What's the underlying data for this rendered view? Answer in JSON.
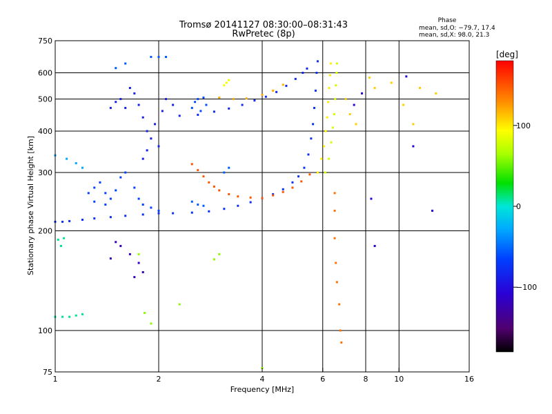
{
  "chart_data": {
    "type": "scatter",
    "title": "Tromsø 20141127 08:30:00–08:31:43",
    "subtitle": "RwPretec (8p)",
    "xlabel": "Frequency [MHz]",
    "ylabel": "Stationary phase Virtual Height [km]",
    "x_scale": "log",
    "y_scale": "log",
    "xlim": [
      1,
      16
    ],
    "ylim": [
      75,
      750
    ],
    "x_ticks": [
      1,
      2,
      4,
      6,
      8,
      10,
      16
    ],
    "x_tick_labels": [
      "1",
      "2",
      "4",
      "6",
      "8",
      "10",
      "16"
    ],
    "x_grid": [
      2,
      4,
      6,
      8,
      10
    ],
    "y_ticks": [
      75,
      100,
      200,
      300,
      400,
      500,
      600,
      750
    ],
    "y_tick_labels": [
      "75",
      "100",
      "200",
      "300",
      "400",
      "500",
      "600",
      "750"
    ],
    "y_grid": [
      100,
      200,
      300,
      400,
      500,
      600
    ],
    "grid": true,
    "stats": {
      "heading": "Phase",
      "line_o": "mean, sd,O: −79.7, 17.4",
      "line_x": "mean, sd,X:  98.0, 21.3"
    },
    "colorbar": {
      "label": "[deg]",
      "range": [
        -180,
        180
      ],
      "ticks": [
        100,
        0,
        -100
      ],
      "tick_labels": [
        "100",
        "0",
        "−100"
      ]
    },
    "series": [
      {
        "phase": -80,
        "points": [
          [
            1.0,
            213
          ],
          [
            1.05,
            213
          ],
          [
            1.1,
            214
          ],
          [
            1.2,
            216
          ],
          [
            1.3,
            218
          ],
          [
            1.45,
            220
          ],
          [
            1.6,
            222
          ],
          [
            1.8,
            224
          ],
          [
            2.0,
            226
          ],
          [
            2.2,
            226
          ],
          [
            2.5,
            227
          ],
          [
            2.8,
            229
          ],
          [
            3.1,
            233
          ],
          [
            3.4,
            238
          ],
          [
            3.7,
            244
          ],
          [
            4.0,
            251
          ],
          [
            4.3,
            258
          ],
          [
            4.6,
            267
          ],
          [
            4.9,
            280
          ],
          [
            5.1,
            292
          ],
          [
            5.3,
            310
          ],
          [
            5.45,
            340
          ],
          [
            5.55,
            380
          ],
          [
            5.62,
            420
          ],
          [
            5.67,
            470
          ],
          [
            5.72,
            530
          ],
          [
            5.76,
            600
          ],
          [
            5.8,
            650
          ]
        ]
      },
      {
        "phase": -85,
        "points": [
          [
            2.3,
            445
          ],
          [
            2.6,
            448
          ],
          [
            2.9,
            458
          ],
          [
            3.2,
            468
          ],
          [
            3.5,
            480
          ],
          [
            3.8,
            495
          ],
          [
            4.1,
            508
          ],
          [
            4.4,
            525
          ],
          [
            4.7,
            548
          ],
          [
            5.0,
            575
          ],
          [
            5.25,
            600
          ],
          [
            5.4,
            618
          ]
        ]
      },
      {
        "phase": -90,
        "points": [
          [
            1.55,
            500
          ],
          [
            1.6,
            470
          ],
          [
            1.7,
            520
          ],
          [
            1.75,
            480
          ],
          [
            1.8,
            440
          ],
          [
            1.85,
            400
          ],
          [
            1.9,
            380
          ],
          [
            1.95,
            420
          ],
          [
            2.0,
            360
          ],
          [
            1.85,
            350
          ],
          [
            1.8,
            330
          ],
          [
            2.05,
            460
          ],
          [
            2.1,
            500
          ],
          [
            2.2,
            480
          ],
          [
            1.65,
            540
          ],
          [
            1.5,
            490
          ],
          [
            1.45,
            470
          ]
        ]
      },
      {
        "phase": -70,
        "points": [
          [
            1.3,
            270
          ],
          [
            1.35,
            280
          ],
          [
            1.4,
            260
          ],
          [
            1.45,
            250
          ],
          [
            1.5,
            265
          ],
          [
            1.55,
            290
          ],
          [
            1.6,
            300
          ],
          [
            1.7,
            270
          ],
          [
            1.75,
            250
          ],
          [
            1.8,
            240
          ],
          [
            1.9,
            235
          ],
          [
            2.0,
            230
          ],
          [
            1.4,
            240
          ],
          [
            1.3,
            245
          ],
          [
            1.25,
            260
          ]
        ]
      },
      {
        "phase": -65,
        "points": [
          [
            2.5,
            470
          ],
          [
            2.55,
            490
          ],
          [
            2.6,
            500
          ],
          [
            2.7,
            505
          ],
          [
            2.75,
            480
          ],
          [
            2.65,
            460
          ]
        ]
      },
      {
        "phase": 150,
        "points": [
          [
            2.5,
            318
          ],
          [
            2.6,
            305
          ],
          [
            2.7,
            292
          ],
          [
            2.8,
            280
          ],
          [
            2.9,
            272
          ],
          [
            3.0,
            265
          ],
          [
            3.2,
            258
          ],
          [
            3.4,
            254
          ],
          [
            3.7,
            252
          ],
          [
            4.0,
            251
          ],
          [
            4.3,
            256
          ],
          [
            4.6,
            262
          ],
          [
            4.9,
            270
          ],
          [
            5.2,
            282
          ],
          [
            5.5,
            296
          ]
        ]
      },
      {
        "phase": 120,
        "points": [
          [
            3.0,
            505
          ],
          [
            3.3,
            500
          ],
          [
            3.6,
            502
          ],
          [
            4.0,
            515
          ],
          [
            4.3,
            530
          ],
          [
            4.6,
            552
          ]
        ]
      },
      {
        "phase": 100,
        "points": [
          [
            5.8,
            300
          ],
          [
            5.95,
            330
          ],
          [
            6.05,
            360
          ],
          [
            6.12,
            400
          ],
          [
            6.18,
            440
          ],
          [
            6.22,
            490
          ],
          [
            6.26,
            540
          ],
          [
            6.3,
            590
          ],
          [
            6.33,
            640
          ]
        ]
      },
      {
        "phase": 80,
        "points": [
          [
            6.1,
            300
          ],
          [
            6.25,
            330
          ],
          [
            6.35,
            370
          ],
          [
            6.42,
            410
          ],
          [
            6.48,
            450
          ],
          [
            6.52,
            500
          ],
          [
            6.55,
            550
          ],
          [
            6.58,
            600
          ],
          [
            6.6,
            640
          ]
        ]
      },
      {
        "phase": 90,
        "points": [
          [
            3.1,
            550
          ],
          [
            3.15,
            560
          ],
          [
            3.2,
            570
          ]
        ]
      },
      {
        "phase": 10,
        "points": [
          [
            1.0,
            110
          ],
          [
            1.05,
            110
          ],
          [
            1.1,
            110
          ],
          [
            1.15,
            111
          ],
          [
            1.2,
            112
          ],
          [
            1.02,
            188
          ],
          [
            1.04,
            180
          ],
          [
            1.06,
            190
          ]
        ]
      },
      {
        "phase": -30,
        "points": [
          [
            1.0,
            338
          ],
          [
            1.08,
            330
          ],
          [
            1.15,
            320
          ],
          [
            1.2,
            310
          ]
        ]
      },
      {
        "phase": -120,
        "points": [
          [
            1.5,
            185
          ],
          [
            1.55,
            180
          ],
          [
            1.75,
            160
          ],
          [
            1.8,
            150
          ],
          [
            1.7,
            145
          ],
          [
            1.45,
            165
          ],
          [
            1.65,
            170
          ]
        ]
      },
      {
        "phase": 140,
        "points": [
          [
            6.5,
            260
          ],
          [
            6.5,
            230
          ],
          [
            6.5,
            190
          ],
          [
            6.55,
            160
          ],
          [
            6.6,
            140
          ],
          [
            6.7,
            120
          ],
          [
            6.75,
            100
          ],
          [
            6.8,
            92
          ]
        ]
      },
      {
        "phase": 110,
        "points": [
          [
            7.0,
            500
          ],
          [
            7.2,
            450
          ],
          [
            7.5,
            420
          ],
          [
            8.2,
            580
          ],
          [
            8.5,
            540
          ],
          [
            9.5,
            560
          ],
          [
            10.3,
            480
          ],
          [
            11.0,
            420
          ],
          [
            11.5,
            540
          ],
          [
            12.8,
            520
          ]
        ]
      },
      {
        "phase": -110,
        "points": [
          [
            8.5,
            180
          ],
          [
            8.3,
            250
          ],
          [
            10.5,
            585
          ],
          [
            11.0,
            360
          ],
          [
            12.5,
            230
          ],
          [
            7.4,
            480
          ],
          [
            7.8,
            520
          ]
        ]
      },
      {
        "phase": -60,
        "points": [
          [
            2.5,
            245
          ],
          [
            2.6,
            240
          ],
          [
            2.7,
            238
          ],
          [
            3.1,
            300
          ],
          [
            3.2,
            310
          ],
          [
            1.5,
            620
          ],
          [
            1.6,
            640
          ],
          [
            1.9,
            670
          ],
          [
            2.0,
            670
          ],
          [
            2.1,
            670
          ]
        ]
      },
      {
        "phase": 60,
        "points": [
          [
            1.82,
            113
          ],
          [
            1.9,
            105
          ],
          [
            2.3,
            120
          ],
          [
            2.9,
            164
          ],
          [
            3.0,
            170
          ],
          [
            4.0,
            77
          ],
          [
            1.75,
            170
          ]
        ]
      }
    ]
  }
}
